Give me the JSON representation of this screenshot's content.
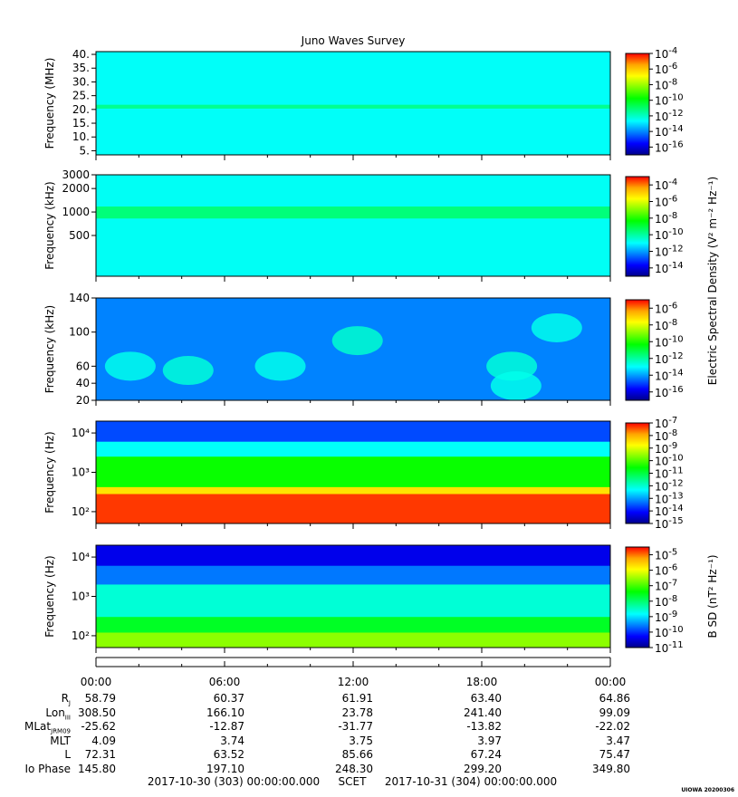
{
  "title": "Juno Waves Survey",
  "stamp": "UIOWA 20200306",
  "footer": {
    "start": "2017-10-30 (303) 00:00:00.000",
    "scet": "SCET",
    "end": "2017-10-31 (304) 00:00:00.000"
  },
  "time_ticks": [
    "00:00",
    "06:00",
    "12:00",
    "18:00",
    "00:00"
  ],
  "ephemeris": [
    {
      "label": "R",
      "sub": "J",
      "values": [
        "58.79",
        "60.37",
        "61.91",
        "63.40",
        "64.86"
      ]
    },
    {
      "label": "Lon",
      "sub": "III",
      "values": [
        "308.50",
        "166.10",
        "23.78",
        "241.40",
        "99.09"
      ]
    },
    {
      "label": "MLat",
      "sub": "JRM09",
      "values": [
        "-25.62",
        "-12.87",
        "-31.77",
        "-13.82",
        "-22.02"
      ]
    },
    {
      "label": "MLT",
      "sub": "",
      "values": [
        "4.09",
        "3.74",
        "3.75",
        "3.97",
        "3.47"
      ]
    },
    {
      "label": "L",
      "sub": "",
      "values": [
        "72.31",
        "63.52",
        "85.66",
        "67.24",
        "75.47"
      ]
    },
    {
      "label": "Io Phase",
      "sub": "",
      "values": [
        "145.80",
        "197.10",
        "248.30",
        "299.20",
        "349.80"
      ]
    }
  ],
  "colors": {
    "colormap": [
      "#00008b",
      "#0000ff",
      "#0080ff",
      "#00ffff",
      "#00ff80",
      "#00ff00",
      "#80ff00",
      "#ffff00",
      "#ffa500",
      "#ff0000"
    ]
  },
  "chart_data": [
    {
      "type": "heatmap",
      "panel": 1,
      "ylabel": "Frequency (MHz)",
      "yscale": "linear",
      "ylim": [
        3.5,
        41
      ],
      "yticks": [
        "40.",
        "35.",
        "30.",
        "25.",
        "20.",
        "15.",
        "10.",
        "5."
      ],
      "ytick_values": [
        40,
        35,
        30,
        25,
        20,
        15,
        10,
        5
      ],
      "colorbar": {
        "ticks": [
          "-4",
          "-6",
          "-8",
          "-10",
          "-12",
          "-14",
          "-16"
        ],
        "log_range": [
          -17,
          -4
        ]
      },
      "colorbar_label": "",
      "background_log_value": -12.6,
      "bands": [
        {
          "center": 21,
          "width": 1.4,
          "log_value": -11.4
        }
      ]
    },
    {
      "type": "heatmap",
      "panel": 2,
      "ylabel": "Frequency (kHz)",
      "yscale": "log",
      "ylim": [
        150,
        3000
      ],
      "yticks": [
        "3000",
        "2000",
        "1000",
        "500"
      ],
      "ytick_values": [
        3000,
        2000,
        1000,
        500
      ],
      "colorbar": {
        "ticks": [
          "-4",
          "-6",
          "-8",
          "-10",
          "-12",
          "-14"
        ],
        "log_range": [
          -15,
          -3
        ]
      },
      "colorbar_label": "Electric Spectral Density (V² m⁻² Hz⁻¹)",
      "background_log_value": -10.9,
      "bands": [
        {
          "center": 1000,
          "width": 350,
          "log_value": -9.6
        }
      ]
    },
    {
      "type": "heatmap",
      "panel": 3,
      "ylabel": "Frequency (kHz)",
      "yscale": "linear",
      "ylim": [
        20,
        140
      ],
      "yticks": [
        "140",
        "100",
        "60",
        "40",
        "20"
      ],
      "ytick_values": [
        140,
        100,
        60,
        40,
        20
      ],
      "colorbar": {
        "ticks": [
          "-6",
          "-8",
          "-10",
          "-12",
          "-14",
          "-16"
        ],
        "log_range": [
          -17,
          -5
        ]
      },
      "colorbar_label": "",
      "background_log_value": -14.3,
      "blobs": [
        {
          "t_hour": 1.6,
          "f": 60,
          "log_value": -12.8
        },
        {
          "t_hour": 4.3,
          "f": 55,
          "log_value": -12.6
        },
        {
          "t_hour": 8.6,
          "f": 60,
          "log_value": -12.8
        },
        {
          "t_hour": 12.2,
          "f": 90,
          "log_value": -12.5
        },
        {
          "t_hour": 19.4,
          "f": 60,
          "log_value": -12.6
        },
        {
          "t_hour": 21.5,
          "f": 105,
          "log_value": -12.8
        },
        {
          "t_hour": 19.6,
          "f": 37,
          "log_value": -12.8
        }
      ]
    },
    {
      "type": "heatmap",
      "panel": 4,
      "ylabel": "Frequency (Hz)",
      "yscale": "log",
      "ylim": [
        50,
        20000
      ],
      "yticks": [
        "10⁴",
        "10³",
        "10²"
      ],
      "ytick_values": [
        10000,
        1000,
        100
      ],
      "colorbar": {
        "ticks": [
          "-7",
          "-8",
          "-9",
          "-10",
          "-11",
          "-12",
          "-13",
          "-14",
          "-15"
        ],
        "log_range": [
          -15,
          -7
        ]
      },
      "colorbar_label": "",
      "bands": [
        {
          "f_max": 280,
          "log_value": -7.3
        },
        {
          "f_max": 420,
          "log_value": -8.5
        },
        {
          "f_max": 2500,
          "log_value": -10.5
        },
        {
          "f_max": 6000,
          "log_value": -12.3
        },
        {
          "f_max": 20000,
          "log_value": -13.6
        }
      ]
    },
    {
      "type": "heatmap",
      "panel": 5,
      "ylabel": "Frequency (Hz)",
      "yscale": "log",
      "ylim": [
        50,
        20000
      ],
      "yticks": [
        "10⁴",
        "10³",
        "10²"
      ],
      "ytick_values": [
        10000,
        1000,
        100
      ],
      "colorbar": {
        "ticks": [
          "-5",
          "-6",
          "-7",
          "-8",
          "-9",
          "-10",
          "-11"
        ],
        "log_range": [
          -11,
          -4.5
        ]
      },
      "colorbar_label": "B SD (nT² Hz⁻¹)",
      "bands": [
        {
          "f_max": 120,
          "log_value": -6.6
        },
        {
          "f_max": 300,
          "log_value": -7.6
        },
        {
          "f_max": 2000,
          "log_value": -8.6
        },
        {
          "f_max": 6000,
          "log_value": -9.6
        },
        {
          "f_max": 20000,
          "log_value": -10.4
        }
      ]
    }
  ]
}
